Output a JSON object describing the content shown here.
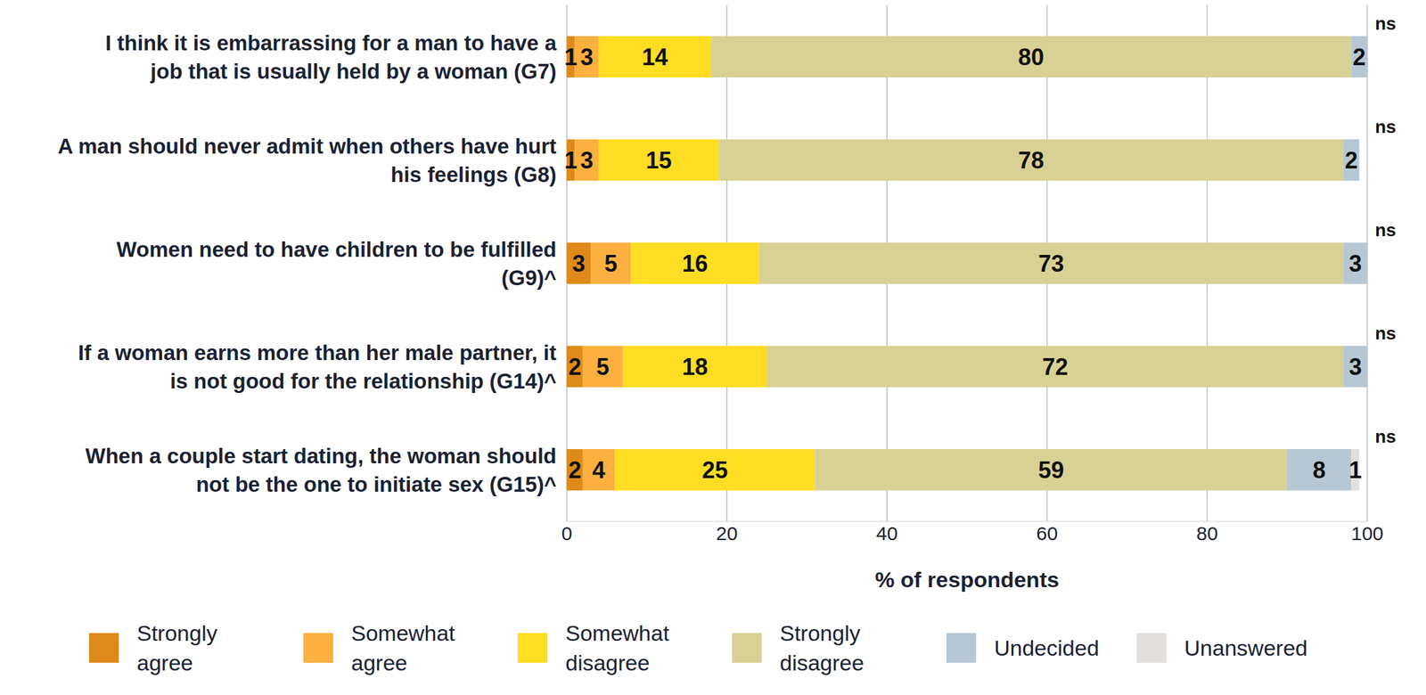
{
  "chart_data": {
    "type": "bar",
    "orientation": "horizontal",
    "stacked": true,
    "data_labels": true,
    "grid": true,
    "legend": "bottom",
    "categories": [
      "I think it is embarrassing for a man to have a job that is usually held by a woman (G7)",
      "A man should never admit when others have hurt his feelings (G8)",
      "Women need to have children to be fulfilled (G9)^",
      "If a woman earns more than her male partner, it is not good for the relationship (G14)^",
      "When a couple start dating, the woman should not be the one to initiate sex (G15)^"
    ],
    "series": [
      {
        "name": "Strongly agree",
        "color": "#DE8A1A",
        "values": [
          1,
          1,
          3,
          2,
          2
        ]
      },
      {
        "name": "Somewhat agree",
        "color": "#FBB040",
        "values": [
          3,
          3,
          5,
          5,
          4
        ]
      },
      {
        "name": "Somewhat disagree",
        "color": "#FFDD22",
        "values": [
          14,
          15,
          16,
          18,
          25
        ]
      },
      {
        "name": "Strongly disagree",
        "color": "#D8D194",
        "values": [
          80,
          78,
          73,
          72,
          59
        ]
      },
      {
        "name": "Undecided",
        "color": "#B7C7D4",
        "values": [
          2,
          2,
          3,
          3,
          8
        ]
      },
      {
        "name": "Unanswered",
        "color": "#E3DFDC",
        "values": [
          null,
          null,
          null,
          null,
          1
        ]
      }
    ],
    "xlim": [
      0,
      100
    ],
    "xticks": [
      0,
      20,
      40,
      60,
      80,
      100
    ],
    "x_label": "% of respondents",
    "row_annotations": [
      "ns",
      "ns",
      "ns",
      "ns",
      "ns"
    ]
  }
}
